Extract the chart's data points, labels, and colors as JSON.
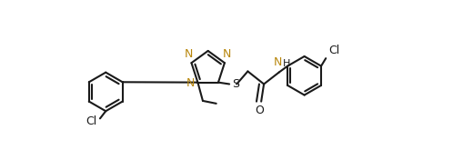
{
  "bg": "#ffffff",
  "lc": "#1a1a1a",
  "Nc": "#b8860b",
  "dc": "#1a1a1a",
  "lw": 1.5,
  "fs": 9.0,
  "figsize": [
    5.09,
    1.65
  ],
  "dpi": 100,
  "xlim": [
    0.0,
    10.5
  ],
  "ylim": [
    -1.2,
    3.2
  ]
}
